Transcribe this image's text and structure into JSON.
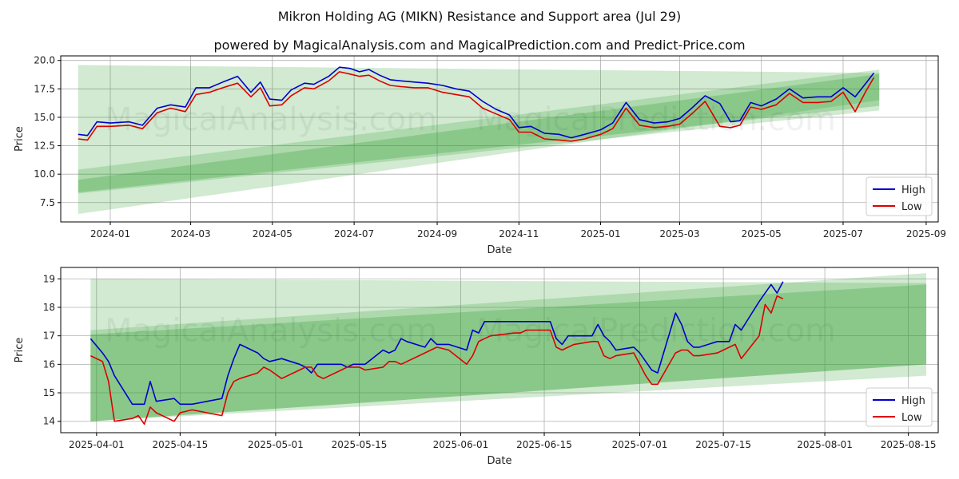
{
  "figure": {
    "title": "Mikron Holding AG (MIKN) Resistance and Support area (Jul 29)",
    "subtitle": "powered by MagicalAnalysis.com and MagicalPrediction.com and Predict-Price.com",
    "watermark_left": "MagicalAnalysis.com",
    "watermark_right": "MagicalPrediction.com"
  },
  "colors": {
    "high": "#0000cc",
    "low": "#dd0000",
    "band": "#2e9e2e",
    "grid": "#b0b0b0"
  },
  "chart_data": [
    {
      "type": "line",
      "xlabel": "Date",
      "ylabel": "Price",
      "x_tick_labels": [
        "2024-01",
        "2024-03",
        "2024-05",
        "2024-07",
        "2024-09",
        "2024-11",
        "2025-01",
        "2025-03",
        "2025-05",
        "2025-07",
        "2025-09"
      ],
      "x_tick_values": [
        "2024-01-01",
        "2024-03-01",
        "2024-05-01",
        "2024-07-01",
        "2024-09-01",
        "2024-11-01",
        "2025-01-01",
        "2025-03-01",
        "2025-05-01",
        "2025-07-01",
        "2025-09-01"
      ],
      "y_ticks": [
        "7.5",
        "10.0",
        "12.5",
        "15.0",
        "17.5",
        "20.0"
      ],
      "x_range": [
        "2023-11-25",
        "2025-09-10"
      ],
      "ylim": [
        5.8,
        20.4
      ],
      "grid": true,
      "legend_position": "lower-right",
      "bands": [
        {
          "x": [
            "2023-12-08",
            "2025-07-28"
          ],
          "upper": [
            19.6,
            18.9
          ],
          "lower": [
            6.5,
            16.5
          ]
        },
        {
          "x": [
            "2023-12-08",
            "2025-07-28"
          ],
          "upper": [
            10.4,
            19.2
          ],
          "lower": [
            8.3,
            15.6
          ]
        },
        {
          "x": [
            "2023-12-08",
            "2025-07-28"
          ],
          "upper": [
            9.5,
            18.8
          ],
          "lower": [
            8.4,
            16.0
          ]
        }
      ],
      "series": [
        {
          "name": "High",
          "x": [
            "2023-12-08",
            "2023-12-15",
            "2023-12-22",
            "2024-01-01",
            "2024-01-15",
            "2024-01-25",
            "2024-02-05",
            "2024-02-15",
            "2024-02-26",
            "2024-03-05",
            "2024-03-15",
            "2024-03-25",
            "2024-04-05",
            "2024-04-15",
            "2024-04-22",
            "2024-04-29",
            "2024-05-08",
            "2024-05-15",
            "2024-05-25",
            "2024-06-01",
            "2024-06-12",
            "2024-06-20",
            "2024-06-28",
            "2024-07-05",
            "2024-07-12",
            "2024-07-20",
            "2024-07-28",
            "2024-08-05",
            "2024-08-15",
            "2024-08-25",
            "2024-09-05",
            "2024-09-15",
            "2024-09-25",
            "2024-10-05",
            "2024-10-15",
            "2024-10-25",
            "2024-11-01",
            "2024-11-10",
            "2024-11-20",
            "2024-12-01",
            "2024-12-10",
            "2024-12-20",
            "2025-01-01",
            "2025-01-10",
            "2025-01-20",
            "2025-01-30",
            "2025-02-10",
            "2025-02-20",
            "2025-03-01",
            "2025-03-10",
            "2025-03-20",
            "2025-03-31",
            "2025-04-08",
            "2025-04-15",
            "2025-04-23",
            "2025-05-01",
            "2025-05-12",
            "2025-05-22",
            "2025-06-01",
            "2025-06-12",
            "2025-06-22",
            "2025-07-01",
            "2025-07-10",
            "2025-07-18",
            "2025-07-24"
          ],
          "values": [
            13.5,
            13.4,
            14.6,
            14.5,
            14.6,
            14.3,
            15.8,
            16.1,
            15.9,
            17.6,
            17.6,
            18.1,
            18.6,
            17.2,
            18.1,
            16.6,
            16.5,
            17.4,
            18.0,
            17.9,
            18.6,
            19.4,
            19.3,
            19.0,
            19.2,
            18.7,
            18.3,
            18.2,
            18.1,
            18.0,
            17.8,
            17.5,
            17.3,
            16.4,
            15.7,
            15.2,
            14.1,
            14.2,
            13.6,
            13.5,
            13.2,
            13.5,
            13.9,
            14.5,
            16.3,
            14.8,
            14.5,
            14.6,
            14.9,
            15.8,
            16.9,
            16.2,
            14.6,
            14.7,
            16.3,
            16.0,
            16.6,
            17.5,
            16.7,
            16.8,
            16.8,
            17.6,
            16.8,
            18.0,
            18.9
          ]
        },
        {
          "name": "Low",
          "x": [
            "2023-12-08",
            "2023-12-15",
            "2023-12-22",
            "2024-01-01",
            "2024-01-15",
            "2024-01-25",
            "2024-02-05",
            "2024-02-15",
            "2024-02-26",
            "2024-03-05",
            "2024-03-15",
            "2024-03-25",
            "2024-04-05",
            "2024-04-15",
            "2024-04-22",
            "2024-04-29",
            "2024-05-08",
            "2024-05-15",
            "2024-05-25",
            "2024-06-01",
            "2024-06-12",
            "2024-06-20",
            "2024-06-28",
            "2024-07-05",
            "2024-07-12",
            "2024-07-20",
            "2024-07-28",
            "2024-08-05",
            "2024-08-15",
            "2024-08-25",
            "2024-09-05",
            "2024-09-15",
            "2024-09-25",
            "2024-10-05",
            "2024-10-15",
            "2024-10-25",
            "2024-11-01",
            "2024-11-10",
            "2024-11-20",
            "2024-12-01",
            "2024-12-10",
            "2024-12-20",
            "2025-01-01",
            "2025-01-10",
            "2025-01-20",
            "2025-01-30",
            "2025-02-10",
            "2025-02-20",
            "2025-03-01",
            "2025-03-10",
            "2025-03-20",
            "2025-03-31",
            "2025-04-08",
            "2025-04-15",
            "2025-04-23",
            "2025-05-01",
            "2025-05-12",
            "2025-05-22",
            "2025-06-01",
            "2025-06-12",
            "2025-06-22",
            "2025-07-01",
            "2025-07-10",
            "2025-07-18",
            "2025-07-24"
          ],
          "values": [
            13.1,
            13.0,
            14.2,
            14.2,
            14.3,
            14.0,
            15.4,
            15.8,
            15.5,
            17.0,
            17.2,
            17.6,
            18.0,
            16.8,
            17.6,
            16.0,
            16.1,
            16.9,
            17.6,
            17.5,
            18.2,
            19.0,
            18.8,
            18.6,
            18.7,
            18.2,
            17.8,
            17.7,
            17.6,
            17.6,
            17.2,
            17.0,
            16.8,
            15.8,
            15.3,
            14.8,
            13.7,
            13.7,
            13.1,
            13.0,
            12.9,
            13.1,
            13.5,
            14.0,
            15.8,
            14.3,
            14.1,
            14.2,
            14.4,
            15.3,
            16.4,
            14.2,
            14.1,
            14.3,
            15.9,
            15.7,
            16.1,
            17.1,
            16.3,
            16.3,
            16.4,
            17.2,
            15.5,
            17.3,
            18.5
          ]
        }
      ]
    },
    {
      "type": "line",
      "xlabel": "Date",
      "ylabel": "Price",
      "x_tick_labels": [
        "2025-04-01",
        "2025-04-15",
        "2025-05-01",
        "2025-05-15",
        "2025-06-01",
        "2025-06-15",
        "2025-07-01",
        "2025-07-15",
        "2025-08-01",
        "2025-08-15"
      ],
      "x_tick_values": [
        "2025-04-01",
        "2025-04-15",
        "2025-05-01",
        "2025-05-15",
        "2025-06-01",
        "2025-06-15",
        "2025-07-01",
        "2025-07-15",
        "2025-08-01",
        "2025-08-15"
      ],
      "y_ticks": [
        "14",
        "15",
        "16",
        "17",
        "18",
        "19"
      ],
      "x_range": [
        "2025-03-26",
        "2025-08-20"
      ],
      "ylim": [
        13.6,
        19.4
      ],
      "grid": true,
      "legend_position": "lower-right",
      "bands": [
        {
          "x": [
            "2025-03-31",
            "2025-08-18"
          ],
          "upper": [
            19.0,
            18.85
          ],
          "lower": [
            14.0,
            16.0
          ]
        },
        {
          "x": [
            "2025-03-31",
            "2025-08-18"
          ],
          "upper": [
            17.2,
            19.2
          ],
          "lower": [
            14.0,
            15.6
          ]
        },
        {
          "x": [
            "2025-03-31",
            "2025-08-18"
          ],
          "upper": [
            17.05,
            18.8
          ],
          "lower": [
            14.0,
            16.0
          ]
        }
      ],
      "series": [
        {
          "name": "High",
          "x": [
            "2025-03-31",
            "2025-04-02",
            "2025-04-03",
            "2025-04-04",
            "2025-04-07",
            "2025-04-08",
            "2025-04-09",
            "2025-04-10",
            "2025-04-11",
            "2025-04-14",
            "2025-04-15",
            "2025-04-17",
            "2025-04-22",
            "2025-04-23",
            "2025-04-24",
            "2025-04-25",
            "2025-04-28",
            "2025-04-29",
            "2025-04-30",
            "2025-05-02",
            "2025-05-05",
            "2025-05-06",
            "2025-05-07",
            "2025-05-08",
            "2025-05-09",
            "2025-05-12",
            "2025-05-13",
            "2025-05-14",
            "2025-05-15",
            "2025-05-16",
            "2025-05-19",
            "2025-05-20",
            "2025-05-21",
            "2025-05-22",
            "2025-05-23",
            "2025-05-26",
            "2025-05-27",
            "2025-05-28",
            "2025-05-30",
            "2025-06-02",
            "2025-06-03",
            "2025-06-04",
            "2025-06-05",
            "2025-06-06",
            "2025-06-10",
            "2025-06-11",
            "2025-06-12",
            "2025-06-13",
            "2025-06-16",
            "2025-06-17",
            "2025-06-18",
            "2025-06-19",
            "2025-06-20",
            "2025-06-23",
            "2025-06-24",
            "2025-06-25",
            "2025-06-26",
            "2025-06-27",
            "2025-06-30",
            "2025-07-01",
            "2025-07-02",
            "2025-07-03",
            "2025-07-04",
            "2025-07-07",
            "2025-07-08",
            "2025-07-09",
            "2025-07-10",
            "2025-07-11",
            "2025-07-14",
            "2025-07-15",
            "2025-07-16",
            "2025-07-17",
            "2025-07-18",
            "2025-07-21",
            "2025-07-22",
            "2025-07-23",
            "2025-07-24",
            "2025-07-25"
          ],
          "values": [
            16.9,
            16.4,
            16.1,
            15.6,
            14.6,
            14.6,
            14.6,
            15.4,
            14.7,
            14.8,
            14.6,
            14.6,
            14.8,
            15.6,
            16.2,
            16.7,
            16.4,
            16.2,
            16.1,
            16.2,
            16.0,
            15.9,
            15.7,
            16.0,
            16.0,
            16.0,
            15.9,
            16.0,
            16.0,
            16.0,
            16.5,
            16.4,
            16.5,
            16.9,
            16.8,
            16.6,
            16.9,
            16.7,
            16.7,
            16.5,
            17.2,
            17.1,
            17.5,
            17.5,
            17.5,
            17.5,
            17.5,
            17.5,
            17.5,
            16.9,
            16.7,
            17.0,
            17.0,
            17.0,
            17.4,
            17.0,
            16.8,
            16.5,
            16.6,
            16.4,
            16.1,
            15.8,
            15.7,
            17.8,
            17.4,
            16.8,
            16.6,
            16.6,
            16.8,
            16.8,
            16.8,
            17.4,
            17.2,
            18.2,
            18.5,
            18.8,
            18.5,
            18.9
          ]
        },
        {
          "name": "Low",
          "x": [
            "2025-03-31",
            "2025-04-02",
            "2025-04-03",
            "2025-04-04",
            "2025-04-07",
            "2025-04-08",
            "2025-04-09",
            "2025-04-10",
            "2025-04-11",
            "2025-04-14",
            "2025-04-15",
            "2025-04-17",
            "2025-04-22",
            "2025-04-23",
            "2025-04-24",
            "2025-04-25",
            "2025-04-28",
            "2025-04-29",
            "2025-04-30",
            "2025-05-02",
            "2025-05-05",
            "2025-05-06",
            "2025-05-07",
            "2025-05-08",
            "2025-05-09",
            "2025-05-12",
            "2025-05-13",
            "2025-05-14",
            "2025-05-15",
            "2025-05-16",
            "2025-05-19",
            "2025-05-20",
            "2025-05-21",
            "2025-05-22",
            "2025-05-23",
            "2025-05-26",
            "2025-05-27",
            "2025-05-28",
            "2025-05-30",
            "2025-06-02",
            "2025-06-03",
            "2025-06-04",
            "2025-06-05",
            "2025-06-06",
            "2025-06-10",
            "2025-06-11",
            "2025-06-12",
            "2025-06-13",
            "2025-06-16",
            "2025-06-17",
            "2025-06-18",
            "2025-06-19",
            "2025-06-20",
            "2025-06-23",
            "2025-06-24",
            "2025-06-25",
            "2025-06-26",
            "2025-06-27",
            "2025-06-30",
            "2025-07-01",
            "2025-07-02",
            "2025-07-03",
            "2025-07-04",
            "2025-07-07",
            "2025-07-08",
            "2025-07-09",
            "2025-07-10",
            "2025-07-11",
            "2025-07-14",
            "2025-07-15",
            "2025-07-16",
            "2025-07-17",
            "2025-07-18",
            "2025-07-21",
            "2025-07-22",
            "2025-07-23",
            "2025-07-24",
            "2025-07-25"
          ],
          "values": [
            16.3,
            16.1,
            15.4,
            14.0,
            14.1,
            14.2,
            13.9,
            14.5,
            14.3,
            14.0,
            14.3,
            14.4,
            14.2,
            15.0,
            15.4,
            15.5,
            15.7,
            15.9,
            15.8,
            15.5,
            15.8,
            15.9,
            15.9,
            15.6,
            15.5,
            15.8,
            15.9,
            15.9,
            15.9,
            15.8,
            15.9,
            16.1,
            16.1,
            16.0,
            16.1,
            16.4,
            16.5,
            16.6,
            16.5,
            16.0,
            16.3,
            16.8,
            16.9,
            17.0,
            17.1,
            17.1,
            17.2,
            17.2,
            17.2,
            16.6,
            16.5,
            16.6,
            16.7,
            16.8,
            16.8,
            16.3,
            16.2,
            16.3,
            16.4,
            16.0,
            15.6,
            15.3,
            15.3,
            16.4,
            16.5,
            16.5,
            16.3,
            16.3,
            16.4,
            16.5,
            16.6,
            16.7,
            16.2,
            17.0,
            18.1,
            17.8,
            18.4,
            18.3
          ]
        }
      ]
    }
  ]
}
